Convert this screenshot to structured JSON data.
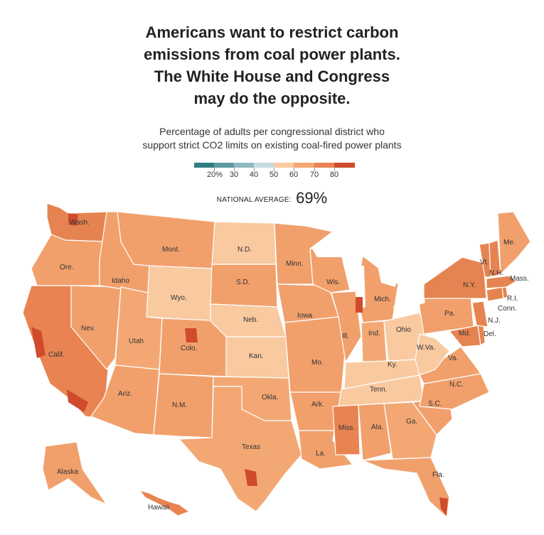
{
  "title_lines": [
    "Americans want to restrict carbon",
    "emissions from coal power plants.",
    "The White House and Congress",
    "may do the opposite."
  ],
  "subtitle_lines": [
    "Percentage of adults per congressional district who",
    "support strict CO2 limits on existing coal-fired power plants"
  ],
  "legend": {
    "labels": [
      "20%",
      "30",
      "40",
      "50",
      "60",
      "70",
      "80"
    ],
    "colors": [
      "#2f7d83",
      "#5e9aa2",
      "#8fb9c0",
      "#c6dbde",
      "#f9c9a0",
      "#f3a874",
      "#e98452",
      "#cf4b2c"
    ]
  },
  "national_average": {
    "caption": "NATIONAL AVERAGE:",
    "value": "69%"
  },
  "palette": {
    "low": "#f9c9a0",
    "mid": "#f1a06c",
    "high": "#e58450",
    "very_high": "#cf4b2c",
    "border": "#ffffff"
  },
  "state_labels": {
    "wa": "Wash.",
    "or": "Ore.",
    "ca": "Calif.",
    "nv": "Nev.",
    "id": "Idaho",
    "mt": "Mont.",
    "wy": "Wyo.",
    "ut": "Utah",
    "az": "Ariz.",
    "co": "Colo.",
    "nm": "N.M.",
    "nd": "N.D.",
    "sd": "S.D.",
    "ne": "Neb.",
    "ks": "Kan.",
    "ok": "Okla.",
    "tx": "Texas",
    "mn": "Minn.",
    "ia": "Iowa",
    "mo": "Mo.",
    "ar": "Ark.",
    "la": "La.",
    "wi": "Wis.",
    "il": "Ill.",
    "mi": "Mich.",
    "in": "Ind.",
    "oh": "Ohio",
    "ky": "Ky.",
    "tn": "Tenn.",
    "ms": "Miss.",
    "al": "Ala.",
    "ga": "Ga.",
    "fl": "Fla.",
    "sc": "S.C.",
    "nc": "N.C.",
    "va": "Va.",
    "wv": "W.Va.",
    "pa": "Pa.",
    "ny": "N.Y.",
    "vt": "Vt.",
    "nh": "N.H.",
    "me": "Me.",
    "ma": "Mass.",
    "ri": "R.I.",
    "ct": "Conn.",
    "nj": "N.J.",
    "md": "Md.",
    "de": "Del.",
    "ak": "Alaska",
    "hi": "Hawaii"
  }
}
